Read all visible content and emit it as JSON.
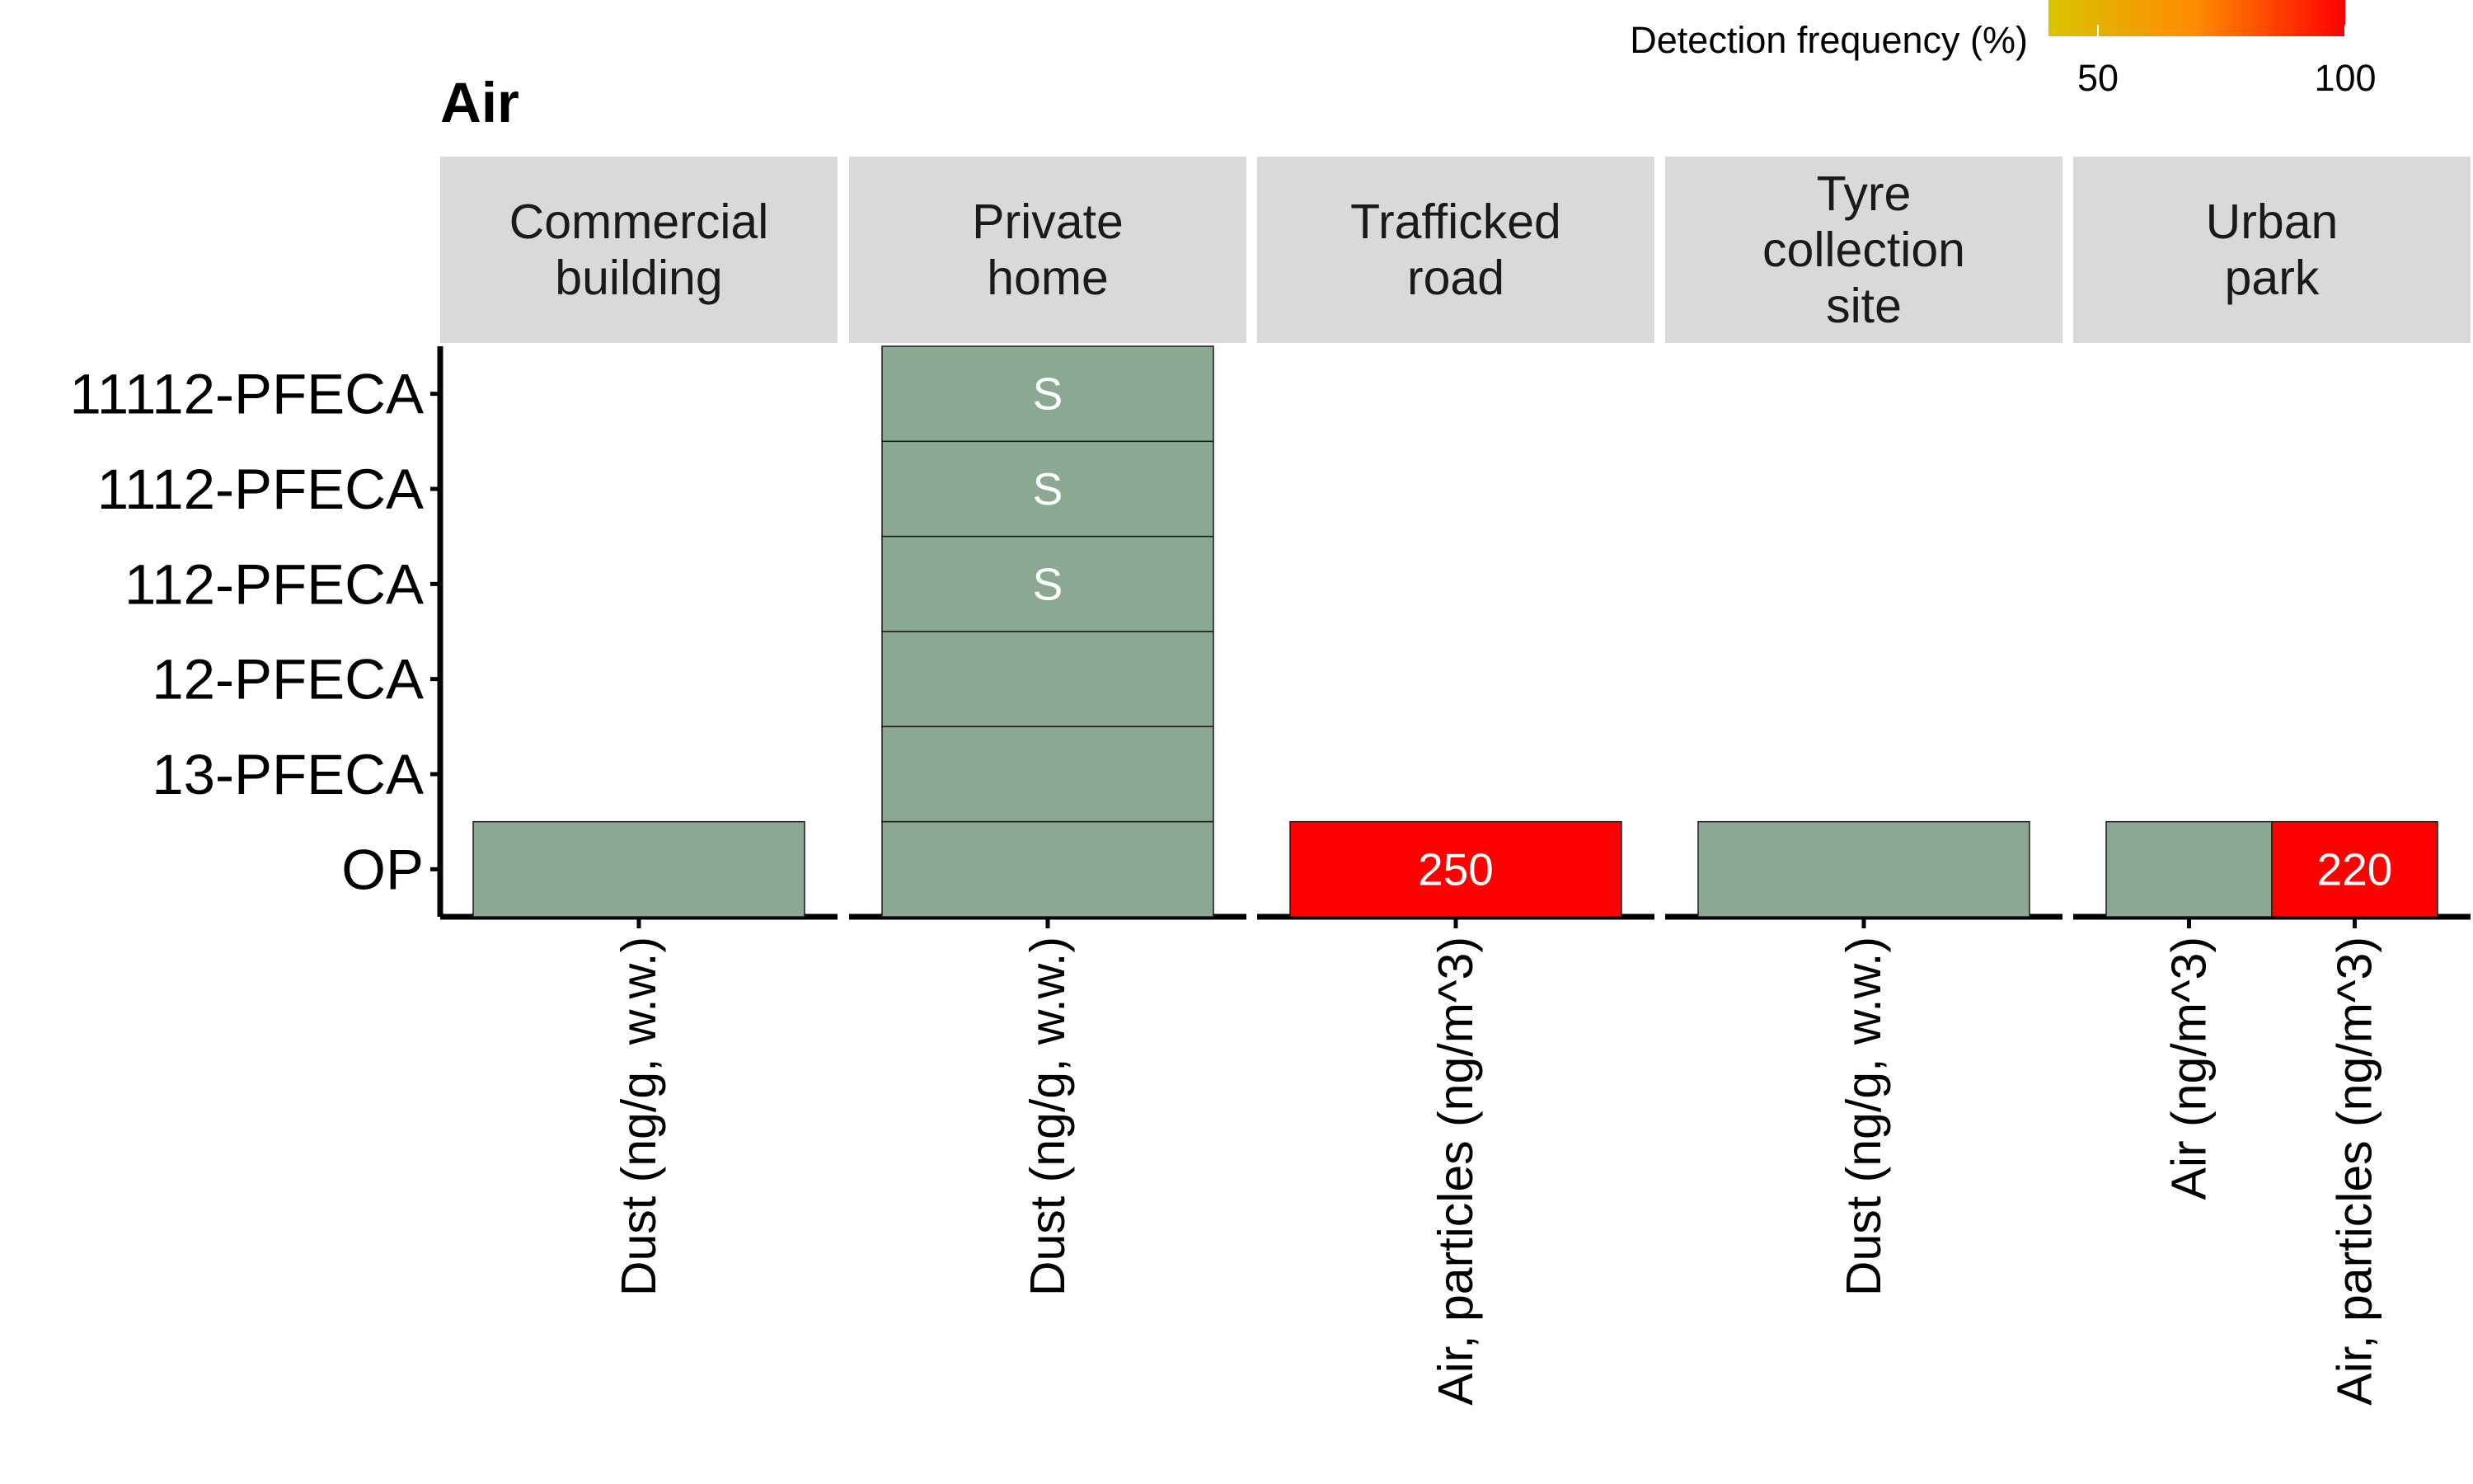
{
  "chart_data": {
    "type": "heatmap",
    "title": "Air",
    "legend": {
      "title": "Detection frequency (%)",
      "ticks": [
        "50",
        "100"
      ],
      "range": [
        40,
        100
      ],
      "colors": [
        "#d9c400",
        "#ff8a00",
        "#ff0000"
      ],
      "placement": "top-right"
    },
    "no_frequency_color": "#8ba992",
    "rows": [
      "11112-PFECA",
      "1112-PFECA",
      "112-PFECA",
      "12-PFECA",
      "13-PFECA",
      "OP"
    ],
    "panels": [
      {
        "strip": [
          "Commercial",
          "building"
        ],
        "columns": [
          "Dust (ng/g, w.w.)"
        ],
        "cells": [
          {
            "row": "OP",
            "col": "Dust (ng/g, w.w.)",
            "detection_frequency": null,
            "label": ""
          }
        ]
      },
      {
        "strip": [
          "Private",
          "home"
        ],
        "columns": [
          "Dust (ng/g, w.w.)"
        ],
        "cells": [
          {
            "row": "11112-PFECA",
            "col": "Dust (ng/g, w.w.)",
            "detection_frequency": null,
            "label": "S"
          },
          {
            "row": "1112-PFECA",
            "col": "Dust (ng/g, w.w.)",
            "detection_frequency": null,
            "label": "S"
          },
          {
            "row": "112-PFECA",
            "col": "Dust (ng/g, w.w.)",
            "detection_frequency": null,
            "label": "S"
          },
          {
            "row": "12-PFECA",
            "col": "Dust (ng/g, w.w.)",
            "detection_frequency": null,
            "label": ""
          },
          {
            "row": "13-PFECA",
            "col": "Dust (ng/g, w.w.)",
            "detection_frequency": null,
            "label": ""
          },
          {
            "row": "OP",
            "col": "Dust (ng/g, w.w.)",
            "detection_frequency": null,
            "label": ""
          }
        ]
      },
      {
        "strip": [
          "Trafficked",
          "road"
        ],
        "columns": [
          "Air, particles (ng/m^3)"
        ],
        "cells": [
          {
            "row": "OP",
            "col": "Air, particles (ng/m^3)",
            "detection_frequency": 100,
            "label": "250"
          }
        ]
      },
      {
        "strip": [
          "Tyre",
          "collection",
          "site"
        ],
        "columns": [
          "Dust (ng/g, w.w.)"
        ],
        "cells": [
          {
            "row": "OP",
            "col": "Dust (ng/g, w.w.)",
            "detection_frequency": null,
            "label": ""
          }
        ]
      },
      {
        "strip": [
          "Urban",
          "park"
        ],
        "columns": [
          "Air (ng/m^3)",
          "Air, particles (ng/m^3)"
        ],
        "cells": [
          {
            "row": "OP",
            "col": "Air (ng/m^3)",
            "detection_frequency": null,
            "label": ""
          },
          {
            "row": "OP",
            "col": "Air, particles (ng/m^3)",
            "detection_frequency": 100,
            "label": "220"
          }
        ]
      }
    ]
  }
}
